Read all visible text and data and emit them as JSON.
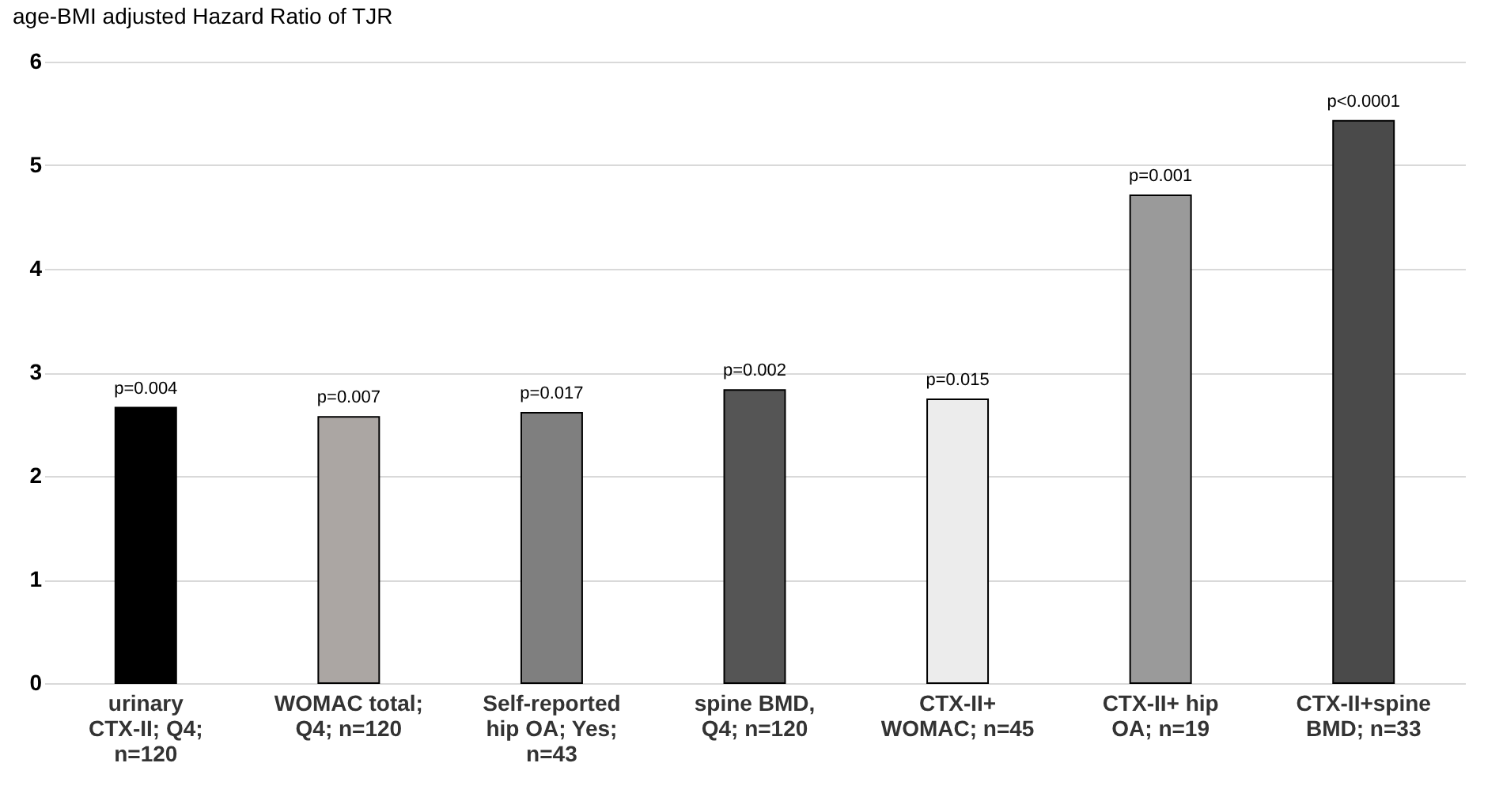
{
  "chart_data": {
    "type": "bar",
    "title": "age-BMI adjusted Hazard Ratio of TJR",
    "categories": [
      "urinary CTX-II; Q4; n=120",
      "WOMAC total; Q4; n=120",
      "Self-reported hip OA; Yes; n=43",
      "spine BMD, Q4; n=120",
      "CTX-II+ WOMAC; n=45",
      "CTX-II+ hip OA; n=19",
      "CTX-II+spine BMD; n=33"
    ],
    "values": [
      2.66,
      2.57,
      2.61,
      2.83,
      2.74,
      4.71,
      5.43
    ],
    "colors": [
      "#000000",
      "#aba6a3",
      "#7f7f7f",
      "#555555",
      "#ececec",
      "#9a9a9a",
      "#4a4a4a"
    ],
    "annotations": [
      {
        "text": "p=0.004",
        "x": "urinary CTX-II; Q4; n=120",
        "y": 2.66
      },
      {
        "text": "p=0.007",
        "x": "WOMAC total; Q4; n=120",
        "y": 2.57
      },
      {
        "text": "p=0.017",
        "x": "Self-reported hip OA; Yes; n=43",
        "y": 2.61
      },
      {
        "text": "p=0.002",
        "x": "spine BMD, Q4; n=120",
        "y": 2.83
      },
      {
        "text": "p=0.015",
        "x": "CTX-II+ WOMAC; n=45",
        "y": 2.74
      },
      {
        "text": "p=0.001",
        "x": "CTX-II+ hip OA; n=19",
        "y": 4.71
      },
      {
        "text": "p<0.0001",
        "x": "CTX-II+spine BMD; n=33",
        "y": 5.43
      }
    ],
    "ylim": [
      0,
      6
    ],
    "yticks": [
      0,
      1,
      2,
      3,
      4,
      5,
      6
    ],
    "grid": "y"
  }
}
